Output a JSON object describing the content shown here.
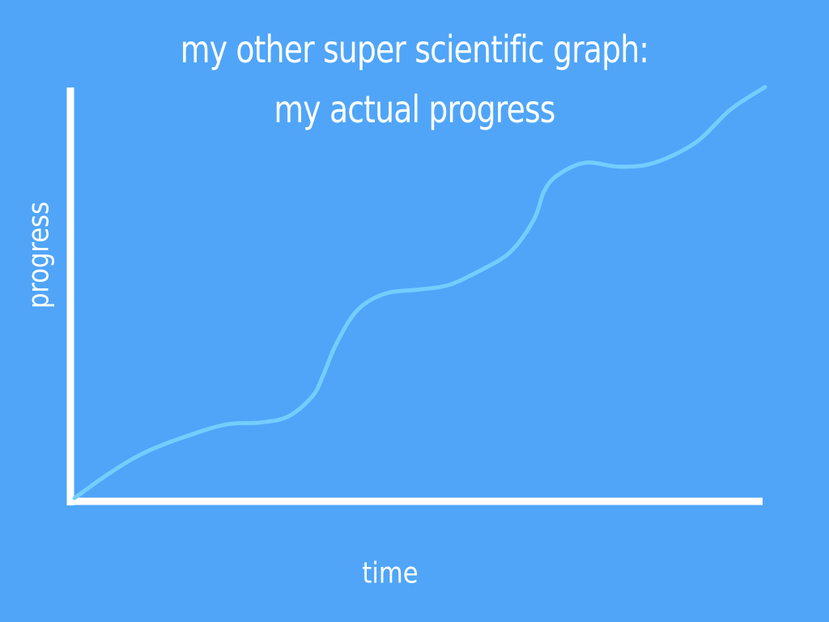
{
  "colors": {
    "background": "#50a5f8",
    "axis": "#ffffff",
    "curve": "#74cdfc",
    "text": "#ffffff"
  },
  "chart_data": {
    "type": "line",
    "title": [
      "my other super scientific graph:",
      "my actual progress"
    ],
    "xlabel": "time",
    "ylabel": "progress",
    "xlim": [
      0,
      100
    ],
    "ylim": [
      0,
      100
    ],
    "grid": false,
    "legend": "none",
    "series": [
      {
        "x": [
          0,
          5,
          10,
          16,
          22,
          27,
          31,
          34.5,
          36,
          38,
          41,
          45,
          50,
          54,
          58,
          63,
          66.5,
          68,
          70,
          74,
          79,
          84,
          90,
          95,
          100
        ],
        "y": [
          0,
          6,
          11,
          15,
          18,
          18.5,
          20,
          25,
          30,
          38,
          46,
          50,
          51,
          52,
          55,
          60,
          68,
          75,
          79,
          82,
          81,
          82,
          87,
          95,
          100.5
        ]
      }
    ]
  }
}
